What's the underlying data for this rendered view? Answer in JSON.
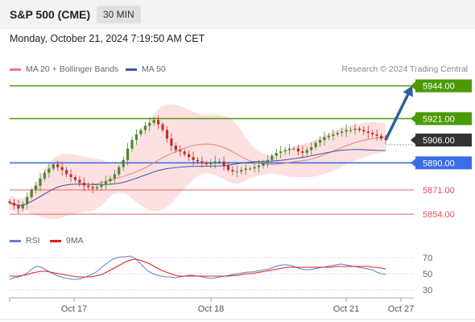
{
  "header": {
    "instrument": "S&P 500 (CME)",
    "timeframe": "30 MIN"
  },
  "timestamp": "Monday, October 21, 2024 7:19:50 AM CET",
  "copyright": "Research © 2024 Trading Central",
  "colors": {
    "resistance": "#4c9a08",
    "pivot": "#3a6ee8",
    "support": "#e05050",
    "arrow": "#2e5fa3",
    "last_price": "#333333",
    "bollinger_fill": "#fde0e0",
    "ma20": "#e88080",
    "ma50": "#3b5aa6",
    "candle_up": "#4a8a2a",
    "candle_down": "#c0302a",
    "rsi": "#5b7fd6",
    "rsi_ma": "#e02020"
  },
  "chart_data": [
    {
      "type": "candlestick",
      "legend": [
        {
          "name": "MA 20 + Bollinger Bands",
          "color": "#e88080"
        },
        {
          "name": "MA 50",
          "color": "#3b5aa6"
        }
      ],
      "x_ticks": [
        "Oct 17",
        "Oct 18",
        "Oct 21",
        "Oct 27"
      ],
      "ylim": [
        5845,
        5950
      ],
      "levels": [
        {
          "label": "5944.00",
          "value": 5944.0,
          "kind": "resistance"
        },
        {
          "label": "5921.00",
          "value": 5921.0,
          "kind": "resistance"
        },
        {
          "label": "5906.00",
          "value": 5906.0,
          "kind": "last_price"
        },
        {
          "label": "5890.00",
          "value": 5890.0,
          "kind": "pivot"
        },
        {
          "label": "5871.00",
          "value": 5871.0,
          "kind": "support"
        },
        {
          "label": "5854.00",
          "value": 5854.0,
          "kind": "support"
        }
      ],
      "close_path": [
        5862,
        5860,
        5858,
        5861,
        5866,
        5871,
        5874,
        5879,
        5883,
        5886,
        5889,
        5887,
        5885,
        5882,
        5880,
        5878,
        5876,
        5874,
        5873,
        5872,
        5873,
        5875,
        5877,
        5879,
        5882,
        5887,
        5892,
        5900,
        5906,
        5910,
        5913,
        5916,
        5918,
        5920,
        5917,
        5913,
        5907,
        5902,
        5899,
        5898,
        5896,
        5894,
        5892,
        5891,
        5890,
        5889,
        5890,
        5891,
        5891,
        5888,
        5885,
        5884,
        5884,
        5885,
        5886,
        5886,
        5887,
        5888,
        5890,
        5892,
        5895,
        5897,
        5898,
        5899,
        5900,
        5900,
        5898,
        5897,
        5899,
        5901,
        5904,
        5906,
        5908,
        5909,
        5910,
        5911,
        5912,
        5913,
        5913,
        5914,
        5913,
        5912,
        5911,
        5910,
        5909,
        5907,
        5906
      ],
      "forecast_target": 5944.0
    },
    {
      "type": "line",
      "name": "RSI",
      "series": [
        {
          "name": "RSI",
          "values": [
            43,
            45,
            46,
            48,
            51,
            56,
            59,
            58,
            55,
            52,
            49,
            47,
            45,
            44,
            43,
            43,
            44,
            46,
            48,
            51,
            55,
            60,
            64,
            68,
            70,
            71,
            71,
            72,
            69,
            64,
            58,
            53,
            50,
            48,
            47,
            46,
            46,
            45,
            46,
            47,
            48,
            48,
            47,
            46,
            45,
            44,
            45,
            46,
            47,
            48,
            49,
            50,
            51,
            52,
            52,
            53,
            54,
            55,
            56,
            58,
            60,
            61,
            61,
            60,
            58,
            56,
            55,
            55,
            56,
            57,
            58,
            59,
            60,
            61,
            62,
            61,
            60,
            59,
            58,
            57,
            56,
            55,
            52,
            50,
            49
          ]
        },
        {
          "name": "9MA",
          "values": [
            47,
            47,
            47,
            48,
            49,
            51,
            52,
            53,
            53,
            52,
            51,
            50,
            49,
            48,
            47,
            46,
            46,
            46,
            46,
            47,
            48,
            50,
            53,
            56,
            59,
            62,
            65,
            67,
            68,
            67,
            65,
            63,
            60,
            57,
            54,
            52,
            50,
            48,
            47,
            47,
            47,
            47,
            47,
            47,
            47,
            47,
            47,
            47,
            47,
            47,
            48,
            48,
            49,
            50,
            50,
            51,
            52,
            53,
            54,
            55,
            56,
            57,
            58,
            58,
            58,
            58,
            58,
            58,
            58,
            58,
            58,
            58,
            58,
            59,
            59,
            59,
            59,
            59,
            59,
            59,
            59,
            58,
            58,
            57,
            56
          ]
        }
      ],
      "y_ticks": [
        70,
        50,
        30
      ],
      "ylim": [
        20,
        80
      ]
    }
  ]
}
